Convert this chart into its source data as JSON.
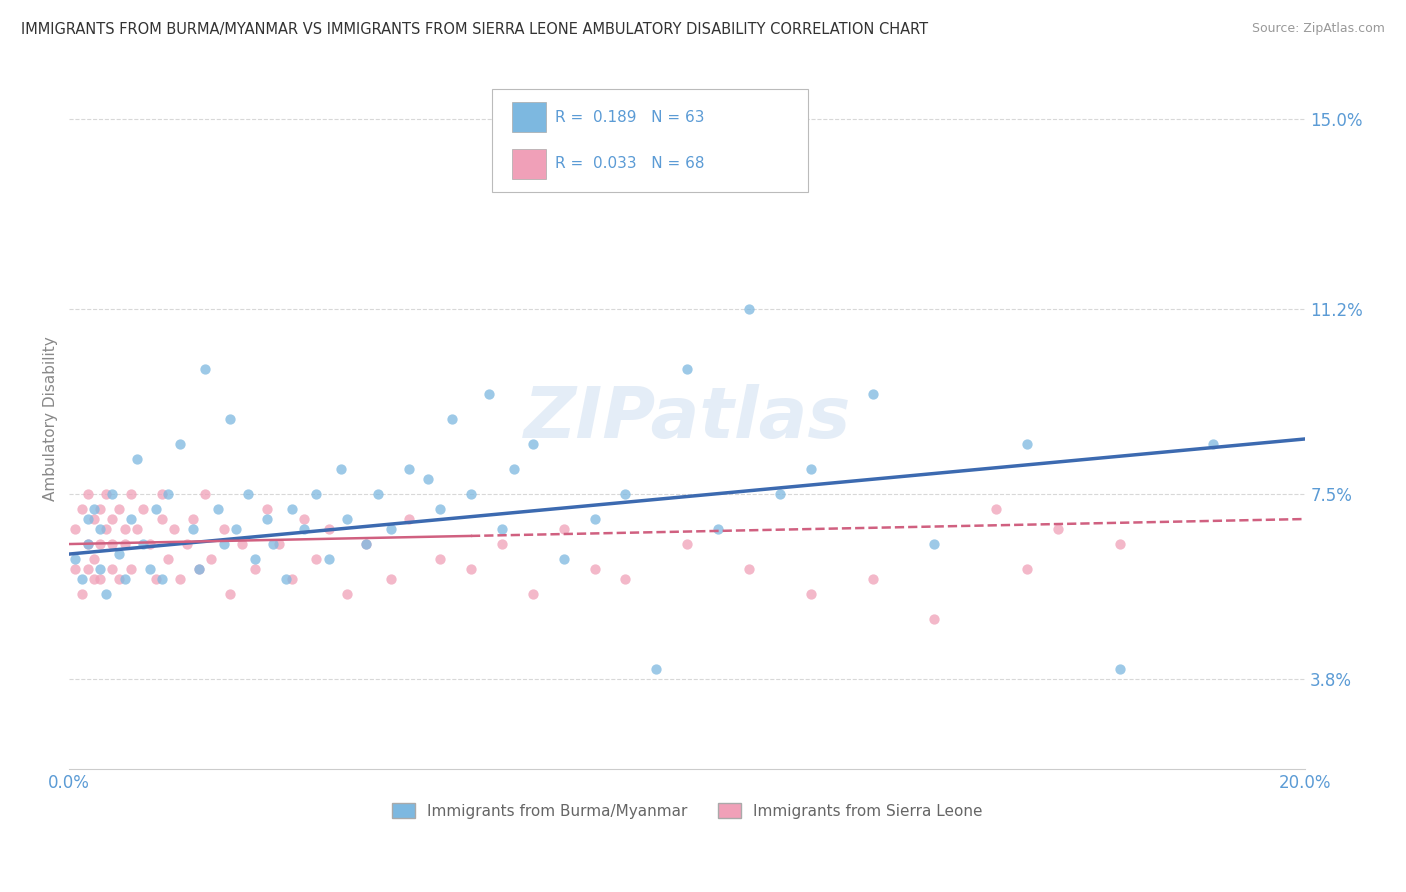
{
  "title": "IMMIGRANTS FROM BURMA/MYANMAR VS IMMIGRANTS FROM SIERRA LEONE AMBULATORY DISABILITY CORRELATION CHART",
  "source": "Source: ZipAtlas.com",
  "ylabel": "Ambulatory Disability",
  "xlim": [
    0.0,
    0.2
  ],
  "ylim": [
    0.02,
    0.16
  ],
  "xtick_pos": [
    0.0,
    0.05,
    0.1,
    0.15,
    0.2
  ],
  "xticklabels": [
    "0.0%",
    "",
    "",
    "",
    "20.0%"
  ],
  "ytick_labels_right": [
    "15.0%",
    "11.2%",
    "7.5%",
    "3.8%"
  ],
  "ytick_values_right": [
    0.15,
    0.112,
    0.075,
    0.038
  ],
  "color_blue": "#7db8e0",
  "color_pink": "#f0a0b8",
  "color_blue_line": "#3c6ab0",
  "color_pink_line": "#d06080",
  "color_axis_label": "#5b9bd5",
  "color_grid": "#d8d8d8",
  "background_color": "#ffffff",
  "watermark_text": "ZIPatlas",
  "series1_name": "Immigrants from Burma/Myanmar",
  "series2_name": "Immigrants from Sierra Leone",
  "series1_R": 0.189,
  "series1_N": 63,
  "series2_R": 0.033,
  "series2_N": 68,
  "blue_x": [
    0.001,
    0.002,
    0.003,
    0.003,
    0.004,
    0.005,
    0.005,
    0.006,
    0.007,
    0.008,
    0.009,
    0.01,
    0.011,
    0.012,
    0.013,
    0.014,
    0.015,
    0.016,
    0.018,
    0.02,
    0.021,
    0.022,
    0.024,
    0.025,
    0.026,
    0.027,
    0.029,
    0.03,
    0.032,
    0.033,
    0.035,
    0.036,
    0.038,
    0.04,
    0.042,
    0.044,
    0.045,
    0.048,
    0.05,
    0.052,
    0.055,
    0.058,
    0.06,
    0.062,
    0.065,
    0.068,
    0.07,
    0.072,
    0.075,
    0.08,
    0.085,
    0.09,
    0.095,
    0.1,
    0.105,
    0.11,
    0.115,
    0.12,
    0.13,
    0.14,
    0.155,
    0.17,
    0.185
  ],
  "blue_y": [
    0.062,
    0.058,
    0.07,
    0.065,
    0.072,
    0.06,
    0.068,
    0.055,
    0.075,
    0.063,
    0.058,
    0.07,
    0.082,
    0.065,
    0.06,
    0.072,
    0.058,
    0.075,
    0.085,
    0.068,
    0.06,
    0.1,
    0.072,
    0.065,
    0.09,
    0.068,
    0.075,
    0.062,
    0.07,
    0.065,
    0.058,
    0.072,
    0.068,
    0.075,
    0.062,
    0.08,
    0.07,
    0.065,
    0.075,
    0.068,
    0.08,
    0.078,
    0.072,
    0.09,
    0.075,
    0.095,
    0.068,
    0.08,
    0.085,
    0.062,
    0.07,
    0.075,
    0.04,
    0.1,
    0.068,
    0.112,
    0.075,
    0.08,
    0.095,
    0.065,
    0.085,
    0.04,
    0.085
  ],
  "pink_x": [
    0.001,
    0.001,
    0.002,
    0.002,
    0.003,
    0.003,
    0.003,
    0.004,
    0.004,
    0.004,
    0.005,
    0.005,
    0.005,
    0.006,
    0.006,
    0.007,
    0.007,
    0.007,
    0.008,
    0.008,
    0.009,
    0.009,
    0.01,
    0.01,
    0.011,
    0.012,
    0.013,
    0.014,
    0.015,
    0.015,
    0.016,
    0.017,
    0.018,
    0.019,
    0.02,
    0.021,
    0.022,
    0.023,
    0.025,
    0.026,
    0.028,
    0.03,
    0.032,
    0.034,
    0.036,
    0.038,
    0.04,
    0.042,
    0.045,
    0.048,
    0.052,
    0.055,
    0.06,
    0.065,
    0.07,
    0.075,
    0.08,
    0.085,
    0.09,
    0.1,
    0.11,
    0.12,
    0.13,
    0.14,
    0.15,
    0.155,
    0.16,
    0.17
  ],
  "pink_y": [
    0.06,
    0.068,
    0.055,
    0.072,
    0.065,
    0.06,
    0.075,
    0.058,
    0.07,
    0.062,
    0.065,
    0.072,
    0.058,
    0.075,
    0.068,
    0.06,
    0.065,
    0.07,
    0.058,
    0.072,
    0.068,
    0.065,
    0.075,
    0.06,
    0.068,
    0.072,
    0.065,
    0.058,
    0.07,
    0.075,
    0.062,
    0.068,
    0.058,
    0.065,
    0.07,
    0.06,
    0.075,
    0.062,
    0.068,
    0.055,
    0.065,
    0.06,
    0.072,
    0.065,
    0.058,
    0.07,
    0.062,
    0.068,
    0.055,
    0.065,
    0.058,
    0.07,
    0.062,
    0.06,
    0.065,
    0.055,
    0.068,
    0.06,
    0.058,
    0.065,
    0.06,
    0.055,
    0.058,
    0.05,
    0.072,
    0.06,
    0.068,
    0.065
  ],
  "blue_line_x0": 0.0,
  "blue_line_x1": 0.2,
  "blue_line_y0": 0.063,
  "blue_line_y1": 0.086,
  "pink_line_x0": 0.0,
  "pink_line_x1": 0.2,
  "pink_line_y0": 0.065,
  "pink_line_y1": 0.07,
  "pink_line_solid_x1": 0.065,
  "scatter_size": 55,
  "scatter_alpha": 0.75
}
